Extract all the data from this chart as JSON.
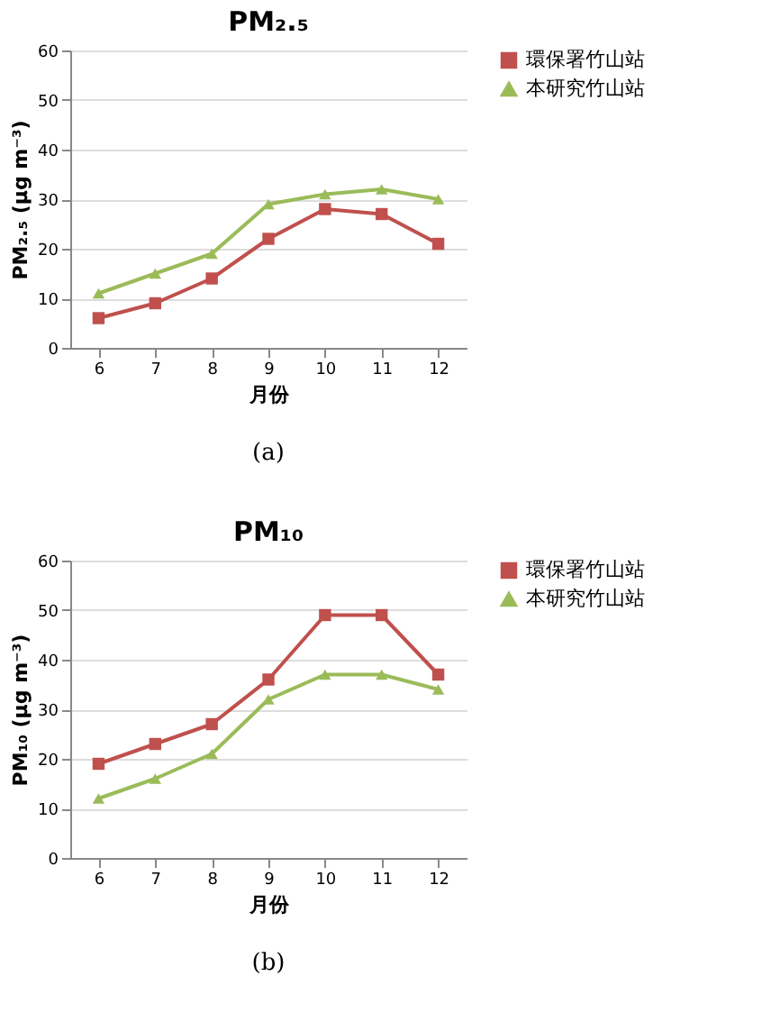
{
  "chart_data": [
    {
      "type": "line",
      "title": "PM₂.₅",
      "xlabel": "月份",
      "ylabel": "PM₂.₅ (μg m⁻³)",
      "categories": [
        "6",
        "7",
        "8",
        "9",
        "10",
        "11",
        "12"
      ],
      "ylim": [
        0,
        60
      ],
      "yticks": [
        0,
        10,
        20,
        30,
        40,
        50,
        60
      ],
      "grid": "y",
      "legend": "right",
      "annotations": [
        "(a)"
      ],
      "series": [
        {
          "name": "環保署竹山站",
          "color": "#c0504d",
          "marker": "square",
          "values": [
            6,
            9,
            14,
            22,
            28,
            27,
            21
          ]
        },
        {
          "name": "本研究竹山站",
          "color": "#9bbb59",
          "marker": "triangle",
          "values": [
            11,
            15,
            19,
            29,
            31,
            32,
            30
          ]
        }
      ]
    },
    {
      "type": "line",
      "title": "PM₁₀",
      "xlabel": "月份",
      "ylabel": "PM₁₀ (μg m⁻³)",
      "categories": [
        "6",
        "7",
        "8",
        "9",
        "10",
        "11",
        "12"
      ],
      "ylim": [
        0,
        60
      ],
      "yticks": [
        0,
        10,
        20,
        30,
        40,
        50,
        60
      ],
      "grid": "y",
      "legend": "right",
      "annotations": [
        "(b)"
      ],
      "series": [
        {
          "name": "環保署竹山站",
          "color": "#c0504d",
          "marker": "square",
          "values": [
            19,
            23,
            27,
            36,
            49,
            49,
            37
          ]
        },
        {
          "name": "本研究竹山站",
          "color": "#9bbb59",
          "marker": "triangle",
          "values": [
            12,
            16,
            21,
            32,
            37,
            37,
            34
          ]
        }
      ]
    }
  ]
}
